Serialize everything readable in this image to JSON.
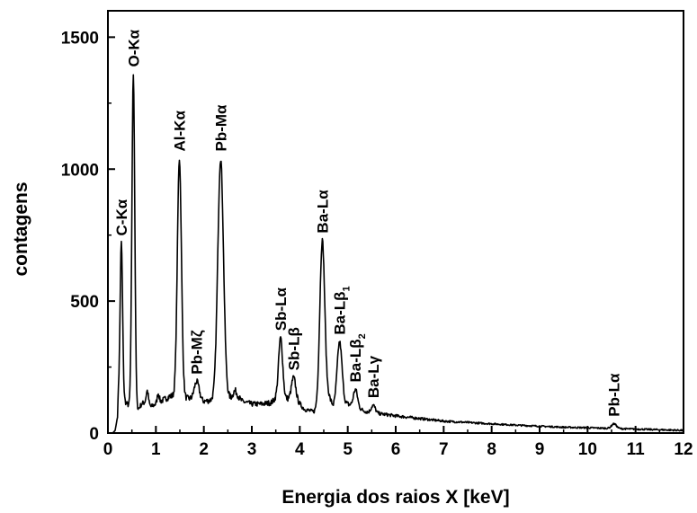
{
  "chart_data": {
    "type": "line",
    "xlabel": "Energia dos raios X  [keV]",
    "ylabel": "contagens",
    "xlim": [
      0,
      12
    ],
    "ylim": [
      0,
      1600
    ],
    "grid": false,
    "x_ticks": [
      0,
      1,
      2,
      3,
      4,
      5,
      6,
      7,
      8,
      9,
      10,
      11,
      12
    ],
    "x_tick_labels": [
      "0",
      "1",
      "2",
      "3",
      "4",
      "5",
      "6",
      "7",
      "8",
      "9",
      "10",
      "11",
      "12"
    ],
    "y_ticks": [
      0,
      500,
      1000,
      1500
    ],
    "y_tick_labels": [
      "0",
      "500",
      "1000",
      "1500"
    ],
    "series": [
      {
        "background": [
          [
            0.1,
            0
          ],
          [
            0.15,
            10
          ],
          [
            0.2,
            60
          ],
          [
            0.22,
            150
          ],
          [
            0.35,
            120
          ],
          [
            0.45,
            100
          ],
          [
            0.6,
            80
          ],
          [
            0.7,
            110
          ],
          [
            0.8,
            120
          ],
          [
            0.9,
            100
          ],
          [
            1.0,
            110
          ],
          [
            1.1,
            120
          ],
          [
            1.3,
            140
          ],
          [
            1.7,
            130
          ],
          [
            2.0,
            120
          ],
          [
            2.2,
            125
          ],
          [
            2.7,
            140
          ],
          [
            2.8,
            120
          ],
          [
            3.0,
            110
          ],
          [
            3.2,
            110
          ],
          [
            3.4,
            115
          ],
          [
            3.5,
            130
          ],
          [
            3.9,
            130
          ],
          [
            4.1,
            90
          ],
          [
            4.3,
            80
          ],
          [
            4.6,
            140
          ],
          [
            4.7,
            100
          ],
          [
            5.0,
            110
          ],
          [
            5.4,
            80
          ],
          [
            5.8,
            70
          ],
          [
            6.0,
            65
          ],
          [
            6.5,
            55
          ],
          [
            7.0,
            45
          ],
          [
            7.5,
            40
          ],
          [
            8.0,
            35
          ],
          [
            8.5,
            30
          ],
          [
            9.0,
            26
          ],
          [
            9.5,
            22
          ],
          [
            10.0,
            20
          ],
          [
            11.0,
            15
          ],
          [
            12.0,
            10
          ]
        ],
        "peaks": [
          {
            "label": "C-Kα",
            "center": 0.28,
            "height": 720,
            "fwhm": 0.06
          },
          {
            "label": "O-Kα",
            "center": 0.53,
            "height": 1360,
            "fwhm": 0.07
          },
          {
            "label": "",
            "center": 0.82,
            "height": 160,
            "fwhm": 0.05
          },
          {
            "label": "",
            "center": 1.05,
            "height": 150,
            "fwhm": 0.05
          },
          {
            "label": "Al-Kα",
            "center": 1.49,
            "height": 1040,
            "fwhm": 0.1
          },
          {
            "label": "Pb-Mζ",
            "center": 1.85,
            "height": 195,
            "fwhm": 0.12
          },
          {
            "label": "Pb-Mα",
            "center": 2.35,
            "height": 1040,
            "fwhm": 0.14
          },
          {
            "label": "",
            "center": 2.65,
            "height": 160,
            "fwhm": 0.08
          },
          {
            "label": "Sb-Lα",
            "center": 3.6,
            "height": 360,
            "fwhm": 0.1
          },
          {
            "label": "Sb-Lβ",
            "center": 3.87,
            "height": 210,
            "fwhm": 0.1
          },
          {
            "label": "Ba-Lα",
            "center": 4.47,
            "height": 730,
            "fwhm": 0.12
          },
          {
            "label": "Ba-Lβ1",
            "center": 4.83,
            "height": 345,
            "fwhm": 0.12
          },
          {
            "label": "Ba-Lβ2",
            "center": 5.16,
            "height": 165,
            "fwhm": 0.1
          },
          {
            "label": "Ba-Lγ",
            "center": 5.53,
            "height": 105,
            "fwhm": 0.1
          },
          {
            "label": "Pb-Lα",
            "center": 10.55,
            "height": 35,
            "fwhm": 0.12
          }
        ]
      }
    ]
  }
}
